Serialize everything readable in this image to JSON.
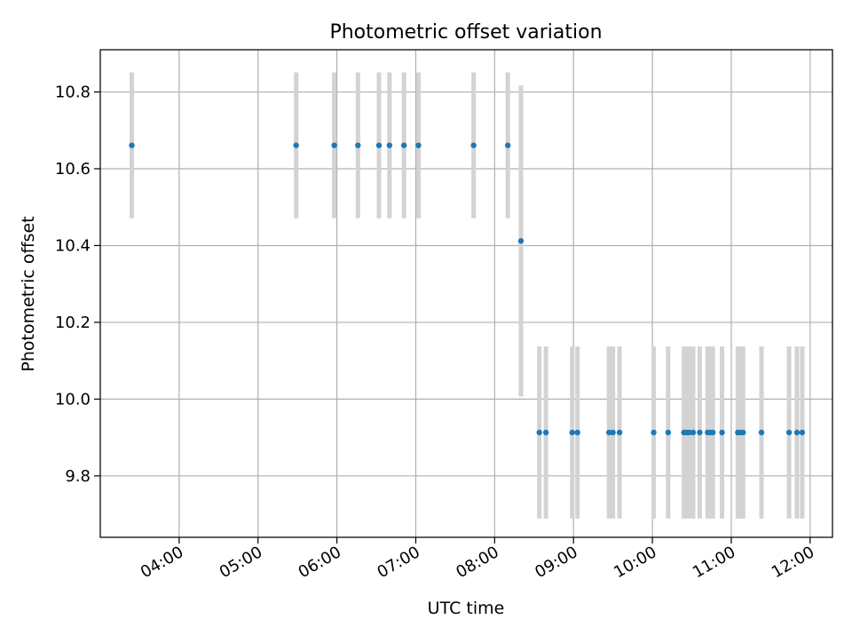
{
  "chart_data": {
    "type": "scatter",
    "title": "Photometric offset variation",
    "xlabel": "UTC time",
    "ylabel": "Photometric offset",
    "x_ticks": [
      "04:00",
      "05:00",
      "06:00",
      "07:00",
      "08:00",
      "09:00",
      "10:00",
      "11:00",
      "12:00"
    ],
    "y_ticks": [
      "9.8",
      "10.0",
      "10.2",
      "10.4",
      "10.6",
      "10.8"
    ],
    "xlim": [
      "03:00",
      "12:17"
    ],
    "ylim": [
      9.64,
      10.91
    ],
    "grid": true,
    "colors": {
      "point": "#1f77b4",
      "errorbar": "#d3d3d3",
      "grid": "#b0b0b0"
    },
    "points": [
      {
        "x": "03:24",
        "y": 10.661,
        "err": 0.19
      },
      {
        "x": "05:29",
        "y": 10.661,
        "err": 0.19
      },
      {
        "x": "05:58",
        "y": 10.661,
        "err": 0.19
      },
      {
        "x": "06:16",
        "y": 10.661,
        "err": 0.19
      },
      {
        "x": "06:32",
        "y": 10.661,
        "err": 0.19
      },
      {
        "x": "06:40",
        "y": 10.661,
        "err": 0.19
      },
      {
        "x": "06:51",
        "y": 10.661,
        "err": 0.19
      },
      {
        "x": "07:02",
        "y": 10.661,
        "err": 0.19
      },
      {
        "x": "07:44",
        "y": 10.661,
        "err": 0.19
      },
      {
        "x": "08:10",
        "y": 10.661,
        "err": 0.19
      },
      {
        "x": "08:20",
        "y": 10.412,
        "err": 0.405
      },
      {
        "x": "08:34",
        "y": 9.913,
        "err": 0.224
      },
      {
        "x": "08:39",
        "y": 9.913,
        "err": 0.224
      },
      {
        "x": "08:59",
        "y": 9.913,
        "err": 0.224
      },
      {
        "x": "09:03",
        "y": 9.913,
        "err": 0.224
      },
      {
        "x": "09:27",
        "y": 9.913,
        "err": 0.224
      },
      {
        "x": "09:30",
        "y": 9.913,
        "err": 0.224
      },
      {
        "x": "09:35",
        "y": 9.913,
        "err": 0.224
      },
      {
        "x": "10:01",
        "y": 9.913,
        "err": 0.224
      },
      {
        "x": "10:12",
        "y": 9.913,
        "err": 0.224
      },
      {
        "x": "10:24",
        "y": 9.913,
        "err": 0.224
      },
      {
        "x": "10:26",
        "y": 9.913,
        "err": 0.224
      },
      {
        "x": "10:28",
        "y": 9.913,
        "err": 0.224
      },
      {
        "x": "10:31",
        "y": 9.913,
        "err": 0.224
      },
      {
        "x": "10:36",
        "y": 9.913,
        "err": 0.224
      },
      {
        "x": "10:42",
        "y": 9.913,
        "err": 0.224
      },
      {
        "x": "10:44",
        "y": 9.913,
        "err": 0.224
      },
      {
        "x": "10:46",
        "y": 9.913,
        "err": 0.224
      },
      {
        "x": "10:53",
        "y": 9.913,
        "err": 0.224
      },
      {
        "x": "11:05",
        "y": 9.913,
        "err": 0.224
      },
      {
        "x": "11:07",
        "y": 9.913,
        "err": 0.224
      },
      {
        "x": "11:09",
        "y": 9.913,
        "err": 0.224
      },
      {
        "x": "11:23",
        "y": 9.913,
        "err": 0.224
      },
      {
        "x": "11:44",
        "y": 9.913,
        "err": 0.224
      },
      {
        "x": "11:50",
        "y": 9.913,
        "err": 0.224
      },
      {
        "x": "11:54",
        "y": 9.913,
        "err": 0.224
      }
    ]
  }
}
